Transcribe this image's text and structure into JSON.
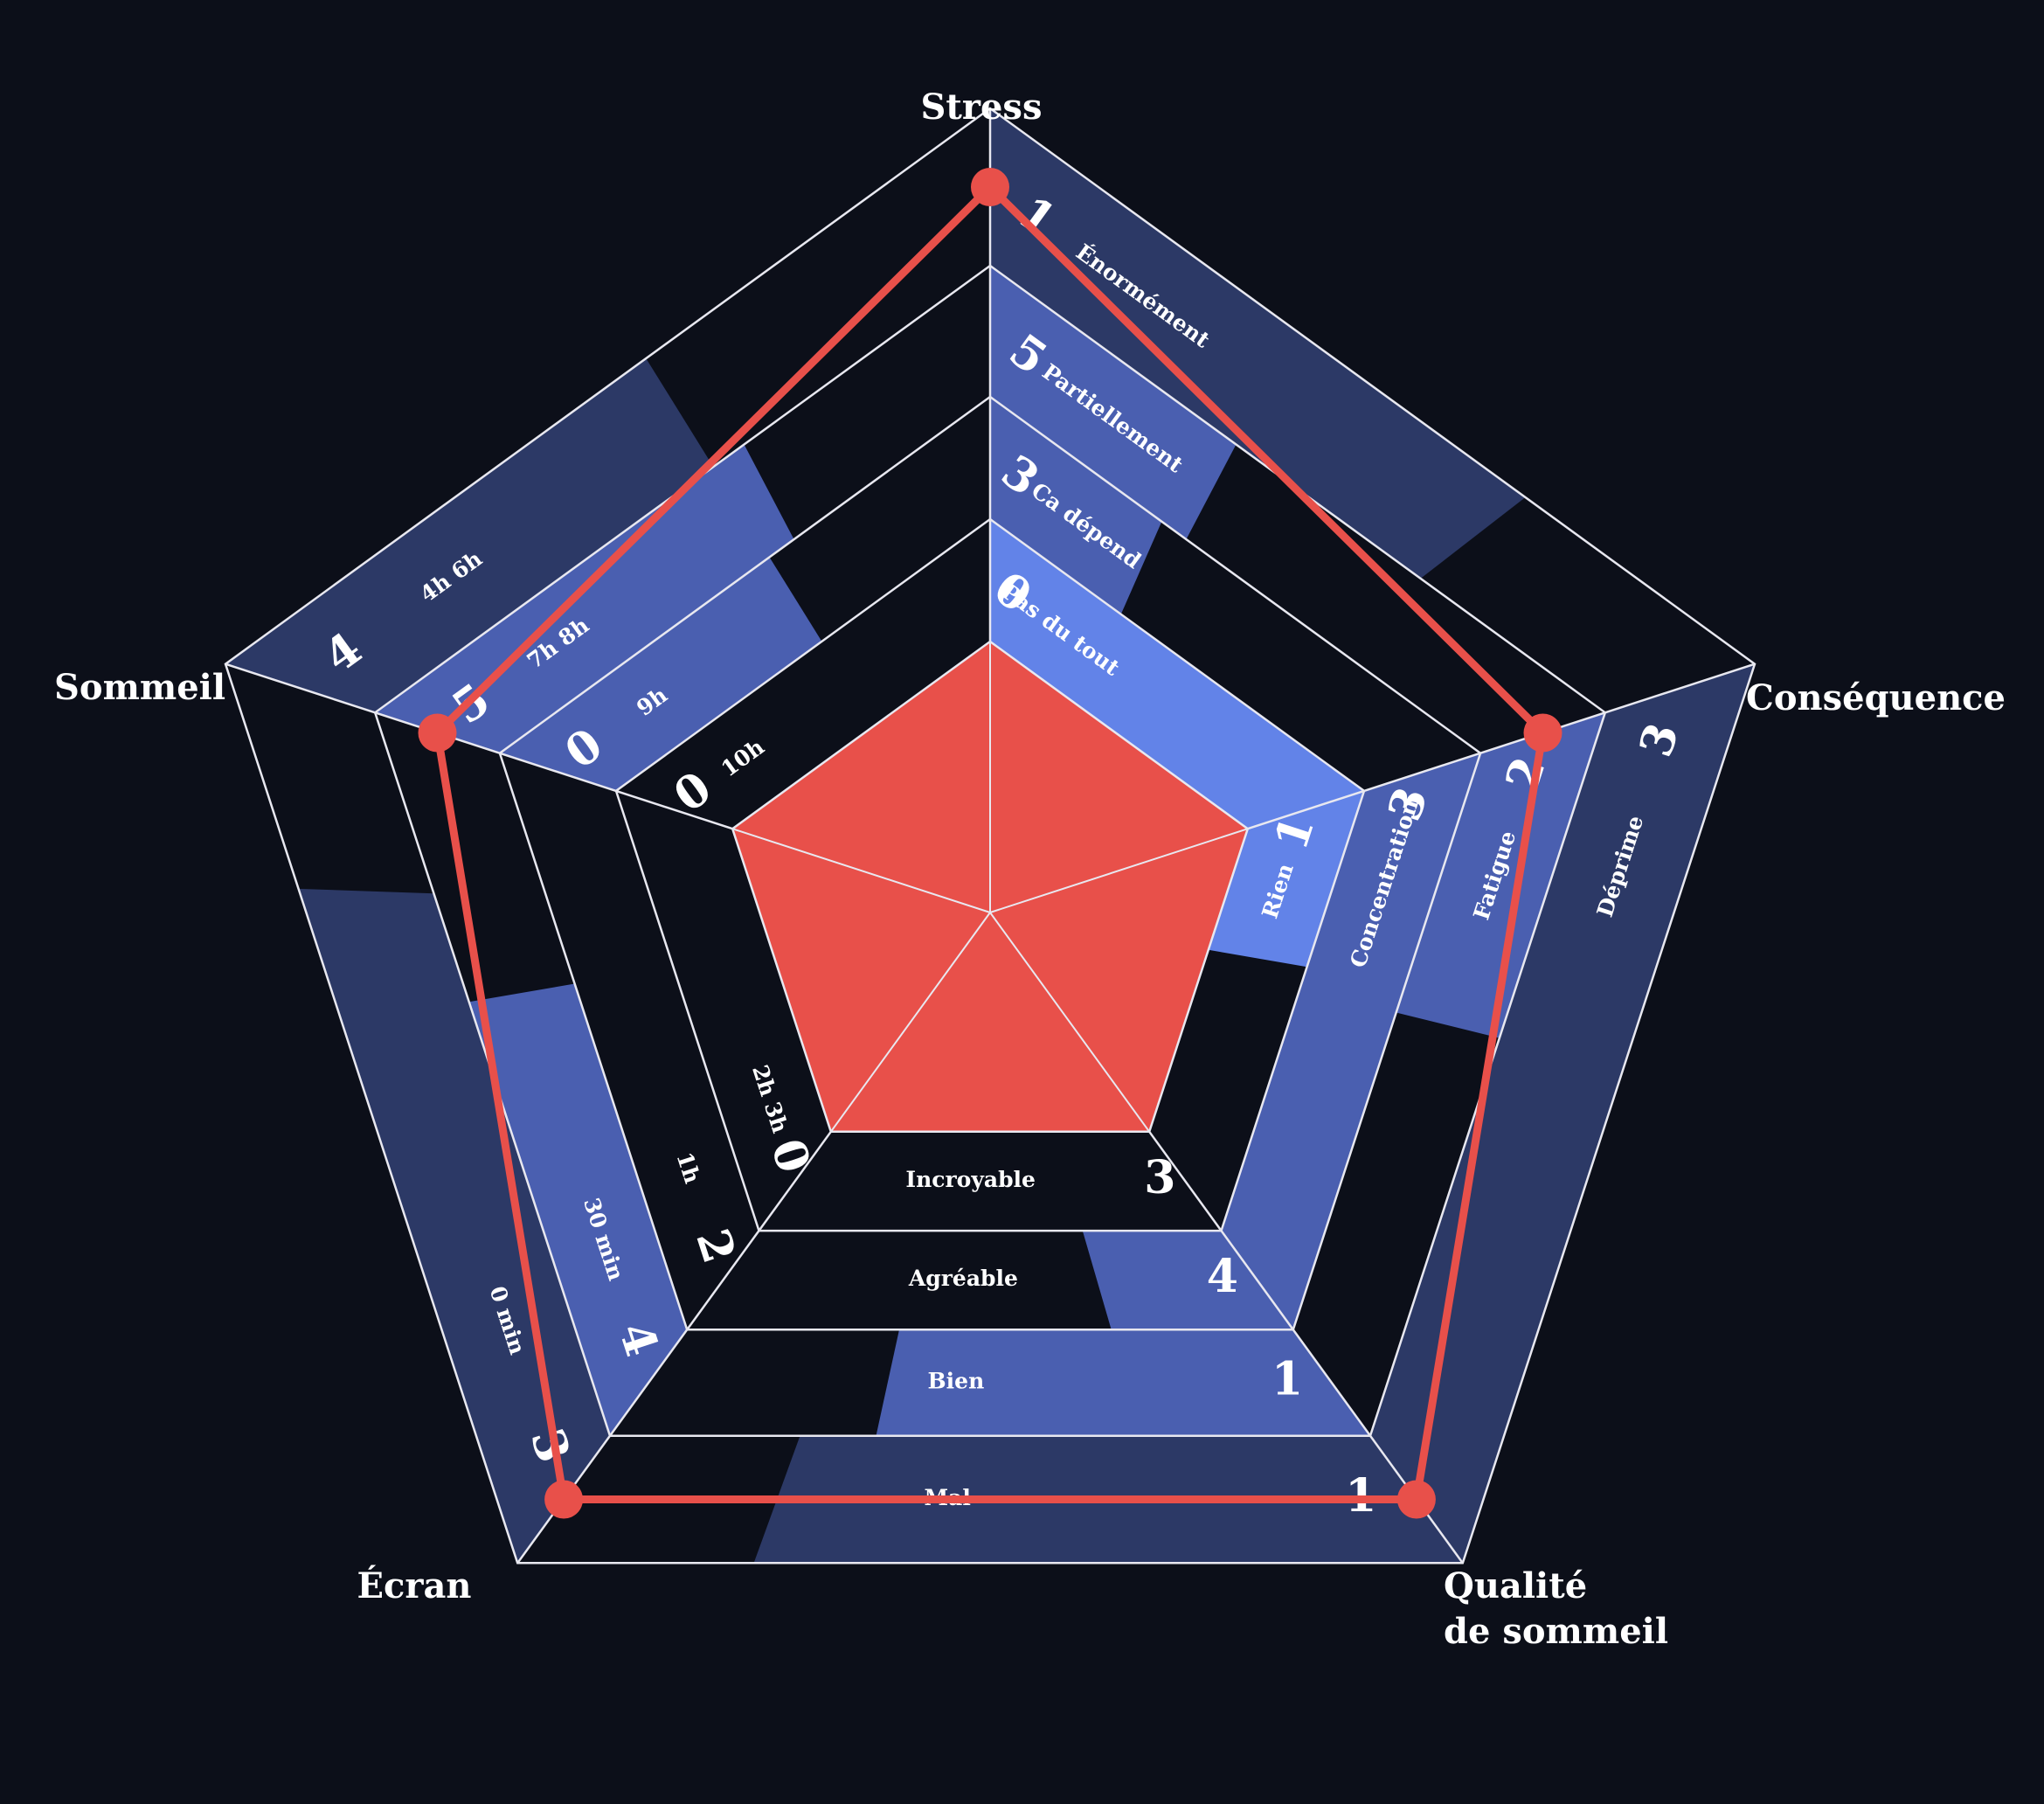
{
  "colors": {
    "background": "#0c0f19",
    "grid": "#e8e8f0",
    "accent": "#e8504a",
    "shade_light": "#6283e8",
    "shade_mid": "#4a5fb0",
    "shade_dark": "#2c3966"
  },
  "chart_data": {
    "type": "radar",
    "axes": [
      {
        "title": "Stress",
        "categories": [
          "Pas du tout",
          "Ca dépend",
          "Partiellement",
          "Énormément"
        ],
        "counts": [
          "0",
          "3",
          "5",
          "1"
        ],
        "shade": [
          1.0,
          0.35,
          0.4,
          0.7
        ]
      },
      {
        "title": "Conséquence",
        "categories": [
          "Rien",
          "Concentration",
          "Fatigue",
          "Déprime"
        ],
        "counts": [
          "1",
          "3",
          "2",
          "3"
        ],
        "shade": [
          0.4,
          1.0,
          0.45,
          1.0
        ]
      },
      {
        "title": "Qualité\nde sommeil",
        "categories": [
          "Incroyable",
          "Agréable",
          "Bien",
          "Mal"
        ],
        "counts": [
          "3",
          "4",
          "1",
          "1"
        ],
        "shade": [
          0.0,
          0.3,
          0.65,
          0.75
        ]
      },
      {
        "title": "Écran",
        "categories": [
          "2h 3h",
          "1h",
          "30 min",
          "0 min"
        ],
        "counts": [
          "0",
          "2",
          "4",
          "3"
        ],
        "shade": [
          0.0,
          0.0,
          0.6,
          0.75
        ]
      },
      {
        "title": "Sommeil",
        "categories": [
          "10h",
          "9h",
          "7h 8h",
          "4h 6h"
        ],
        "counts": [
          "0",
          "0",
          "5",
          "4"
        ],
        "shade": [
          0.0,
          0.55,
          0.6,
          0.55
        ]
      }
    ],
    "series": [
      {
        "values": [
          "Énormément",
          "Fatigue",
          "Mal",
          "0 min",
          "7h 8h"
        ]
      }
    ]
  }
}
